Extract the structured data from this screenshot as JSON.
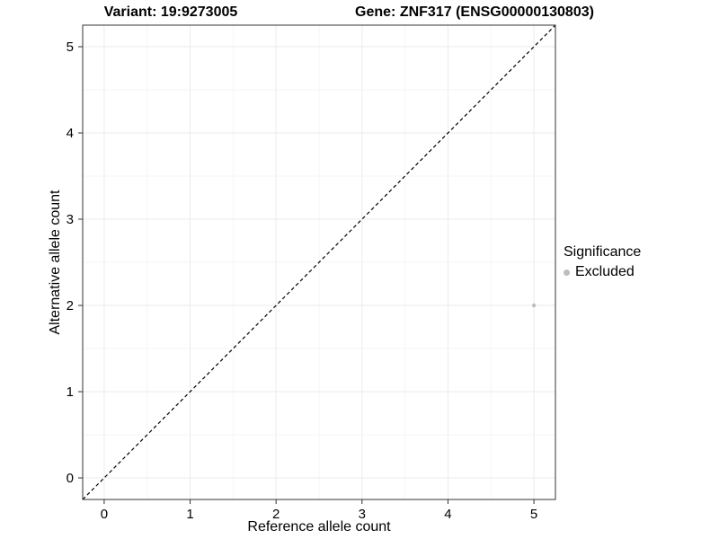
{
  "chart_data": {
    "type": "scatter",
    "title_left": "Variant: 19:9273005",
    "title_right": "Gene: ZNF317 (ENSG00000130803)",
    "xlabel": "Reference allele count",
    "ylabel": "Alternative allele count",
    "xlim": [
      -0.25,
      5.25
    ],
    "ylim": [
      -0.25,
      5.25
    ],
    "x_ticks": [
      0,
      1,
      2,
      3,
      4,
      5
    ],
    "y_ticks": [
      0,
      1,
      2,
      3,
      4,
      5
    ],
    "grid": "on",
    "grid_major_color": "#ebebeb",
    "grid_minor_color": "#f6f6f6",
    "panel_border_color": "#333333",
    "identity_line": {
      "style": "dashed",
      "color": "#000000",
      "from": [
        -0.25,
        -0.25
      ],
      "to": [
        5.25,
        5.25
      ]
    },
    "points": [
      {
        "x": 5,
        "y": 2,
        "series": "Excluded",
        "color": "#bdbdbd",
        "radius": 2.2
      }
    ],
    "legend": {
      "title": "Significance",
      "position": "right",
      "entries": [
        {
          "label": "Excluded",
          "color": "#bdbdbd"
        }
      ]
    }
  }
}
